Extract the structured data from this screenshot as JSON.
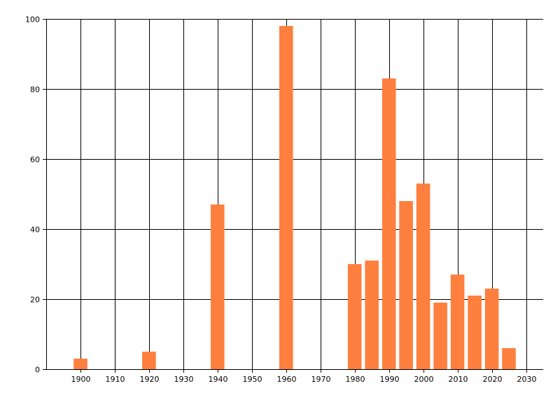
{
  "chart_data": {
    "type": "bar",
    "title": "",
    "xlabel": "",
    "ylabel": "",
    "x": [
      1900,
      1920,
      1940,
      1960,
      1980,
      1985,
      1990,
      1995,
      2000,
      2005,
      2010,
      2015,
      2020,
      2025
    ],
    "values": [
      3,
      5,
      47,
      98,
      30,
      31,
      83,
      48,
      53,
      19,
      27,
      21,
      23,
      6
    ],
    "xlim": [
      1890,
      2035
    ],
    "ylim": [
      0,
      100
    ],
    "x_ticks": [
      "1900",
      "1910",
      "1920",
      "1930",
      "1940",
      "1950",
      "1960",
      "1970",
      "1980",
      "1990",
      "2000",
      "2010",
      "2020",
      "2030"
    ],
    "y_ticks": [
      "0",
      "20",
      "40",
      "60",
      "80",
      "100"
    ],
    "bar_width_years": 4,
    "grid": true,
    "legend": "none",
    "colors": {
      "bar": "#ff7f3f",
      "grid": "#000000",
      "axis": "#000000",
      "background": "#ffffff"
    }
  }
}
